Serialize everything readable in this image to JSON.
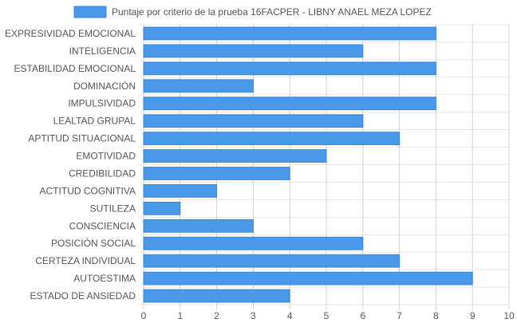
{
  "chart_data": {
    "type": "bar",
    "orientation": "horizontal",
    "legend": {
      "position": "top",
      "label": "Puntaje por criterio de la prueba 16FACPER - LIBNY ANAEL MEZA LOPEZ"
    },
    "categories": [
      "EXPRESIVIDAD EMOCIONAL",
      "INTELIGENCIA",
      "ESTABILIDAD EMOCIONAL",
      "DOMINACIÓN",
      "IMPULSIVIDAD",
      "LEALTAD GRUPAL",
      "APTITUD SITUACIONAL",
      "EMOTIVIDAD",
      "CREDIBILIDAD",
      "ACTITUD COGNITIVA",
      "SUTILEZA",
      "CONSCIENCIA",
      "POSICIÓN SOCIAL",
      "CERTEZA INDIVIDUAL",
      "AUTOESTIMA",
      "ESTADO DE ANSIEDAD"
    ],
    "series": [
      {
        "name": "Puntaje por criterio de la prueba 16FACPER - LIBNY ANAEL MEZA LOPEZ",
        "values": [
          8,
          6,
          8,
          3,
          8,
          6,
          7,
          5,
          4,
          2,
          1,
          3,
          6,
          7,
          9,
          4
        ],
        "color": "#4a98e9",
        "border_color": "#3a87d8"
      }
    ],
    "xlim": [
      0,
      10
    ],
    "x_ticks": [
      "0",
      "1",
      "2",
      "3",
      "4",
      "5",
      "6",
      "7",
      "8",
      "9",
      "10"
    ],
    "grid": true
  }
}
